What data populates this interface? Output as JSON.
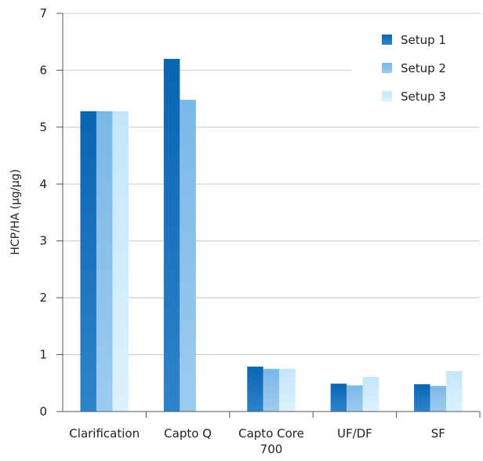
{
  "chart_data": {
    "type": "bar",
    "title": "",
    "xlabel": "",
    "ylabel": "HCP/HA (µg/µg)",
    "ylim": [
      0,
      7
    ],
    "yticks": [
      0,
      1,
      2,
      3,
      4,
      5,
      6,
      7
    ],
    "grid": true,
    "legend_position": "top-right",
    "categories": [
      [
        "Clarification"
      ],
      [
        "Capto Q"
      ],
      [
        "Capto Core",
        "700"
      ],
      [
        "UF/DF"
      ],
      [
        "SF"
      ]
    ],
    "series": [
      {
        "name": "Setup 1",
        "color": "#1f78c1",
        "values": [
          5.28,
          6.2,
          0.79,
          0.49,
          0.48
        ]
      },
      {
        "name": "Setup 2",
        "color": "#8cc2ea",
        "values": [
          5.28,
          5.48,
          0.75,
          0.46,
          0.45
        ]
      },
      {
        "name": "Setup 3",
        "color": "#ccebfb",
        "values": [
          5.28,
          null,
          0.75,
          0.61,
          0.71
        ]
      }
    ]
  }
}
